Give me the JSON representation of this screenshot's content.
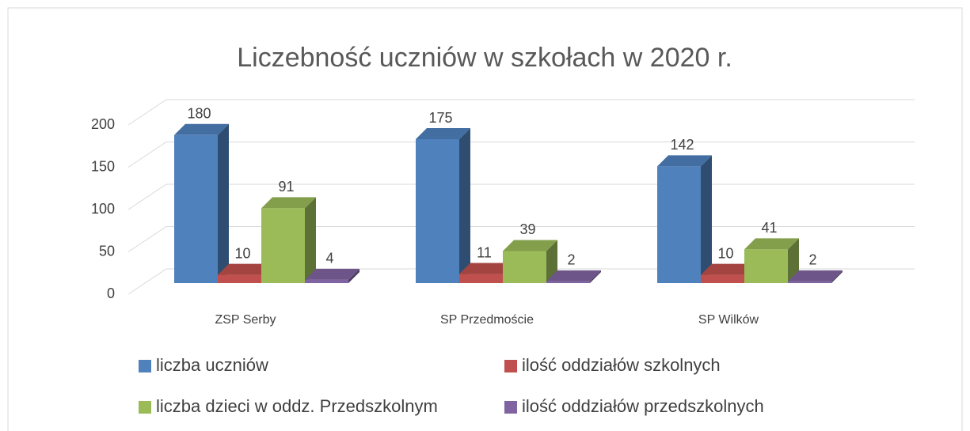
{
  "chart_data": {
    "type": "bar3d",
    "title": "Liczebność uczniów w szkołach w 2020 r.",
    "categories": [
      "ZSP Serby",
      "SP Przedmoście",
      "SP Wilków"
    ],
    "series": [
      {
        "name": "liczba uczniów",
        "color": "#4f81bd",
        "values": [
          180,
          175,
          142
        ]
      },
      {
        "name": "ilość oddziałów szkolnych",
        "color": "#c0504d",
        "values": [
          10,
          11,
          10
        ]
      },
      {
        "name": "liczba dzieci w oddz. Przedszkolnym",
        "color": "#9bbb59",
        "values": [
          91,
          39,
          41
        ]
      },
      {
        "name": "ilość oddziałów przedszkolnych",
        "color": "#8064a2",
        "values": [
          4,
          2,
          2
        ]
      }
    ],
    "ylim": [
      0,
      200
    ],
    "yticks": [
      0,
      50,
      100,
      150,
      200
    ],
    "grid": true,
    "legend": "bottom"
  }
}
